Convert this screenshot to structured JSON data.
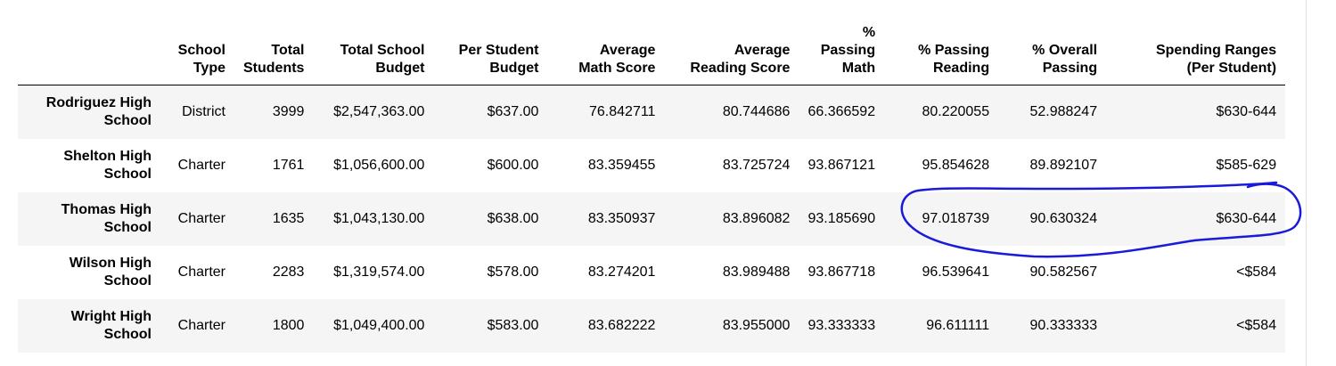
{
  "table": {
    "headers": [
      "",
      "School Type",
      "Total Students",
      "Total School Budget",
      "Per Student Budget",
      "Average Math Score",
      "Average Reading Score",
      "% Passing Math",
      "% Passing Reading",
      "% Overall Passing",
      "Spending Ranges (Per Student)"
    ],
    "rows": [
      {
        "name": "Rodriguez High School",
        "type": "District",
        "students": "3999",
        "budget": "$2,547,363.00",
        "per_student": "$637.00",
        "math": "76.842711",
        "reading": "80.744686",
        "pass_math": "66.366592",
        "pass_reading": "80.220055",
        "overall": "52.988247",
        "range": "$630-644"
      },
      {
        "name": "Shelton High School",
        "type": "Charter",
        "students": "1761",
        "budget": "$1,056,600.00",
        "per_student": "$600.00",
        "math": "83.359455",
        "reading": "83.725724",
        "pass_math": "93.867121",
        "pass_reading": "95.854628",
        "overall": "89.892107",
        "range": "$585-629"
      },
      {
        "name": "Thomas High School",
        "type": "Charter",
        "students": "1635",
        "budget": "$1,043,130.00",
        "per_student": "$638.00",
        "math": "83.350937",
        "reading": "83.896082",
        "pass_math": "93.185690",
        "pass_reading": "97.018739",
        "overall": "90.630324",
        "range": "$630-644"
      },
      {
        "name": "Wilson High School",
        "type": "Charter",
        "students": "2283",
        "budget": "$1,319,574.00",
        "per_student": "$578.00",
        "math": "83.274201",
        "reading": "83.989488",
        "pass_math": "93.867718",
        "pass_reading": "96.539641",
        "overall": "90.582567",
        "range": "<$584"
      },
      {
        "name": "Wright High School",
        "type": "Charter",
        "students": "1800",
        "budget": "$1,049,400.00",
        "per_student": "$583.00",
        "math": "83.682222",
        "reading": "83.955000",
        "pass_math": "93.333333",
        "pass_reading": "96.611111",
        "overall": "90.333333",
        "range": "<$584"
      }
    ]
  },
  "annotation": {
    "color": "#1a1adb",
    "shape": "hand-drawn ellipse around % Passing Reading, % Overall Passing and Spending Ranges of the Thomas High School row"
  }
}
